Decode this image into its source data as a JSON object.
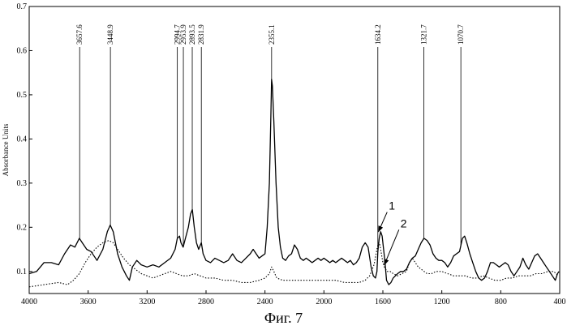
{
  "caption": "Фиг. 7",
  "chart_data": {
    "type": "line",
    "ylabel": "Absorbance Units",
    "xlabel": "",
    "xlim": [
      4000,
      400
    ],
    "ylim": [
      0.05,
      0.7
    ],
    "x_ticks": [
      "4000",
      "3600",
      "3200",
      "2800",
      "2400",
      "2000",
      "1600",
      "1200",
      "800",
      "400"
    ],
    "x_tick_values": [
      4000,
      3600,
      3200,
      2800,
      2400,
      2000,
      1600,
      1200,
      800,
      400
    ],
    "y_ticks": [
      "0.1",
      "0.2",
      "0.3",
      "0.4",
      "0.5",
      "0.6",
      "0.7"
    ],
    "y_tick_values": [
      0.1,
      0.2,
      0.3,
      0.4,
      0.5,
      0.6,
      0.7
    ],
    "peak_labels": [
      {
        "x": 3657.6,
        "text": "3657.6"
      },
      {
        "x": 3448.9,
        "text": "3448.9"
      },
      {
        "x": 2994.7,
        "text": "2994.7"
      },
      {
        "x": 2953.9,
        "text": "2953.9"
      },
      {
        "x": 2893.5,
        "text": "2893.5"
      },
      {
        "x": 2831.9,
        "text": "2831.9"
      },
      {
        "x": 2355.1,
        "text": "2355.1"
      },
      {
        "x": 1634.2,
        "text": "1634.2"
      },
      {
        "x": 1321.7,
        "text": "1321.7"
      },
      {
        "x": 1070.7,
        "text": "1070.7"
      }
    ],
    "series": [
      {
        "name": "1",
        "style": "solid",
        "x": [
          4000,
          3950,
          3900,
          3850,
          3800,
          3760,
          3720,
          3690,
          3660,
          3640,
          3610,
          3580,
          3540,
          3500,
          3470,
          3450,
          3430,
          3400,
          3370,
          3340,
          3320,
          3300,
          3270,
          3240,
          3200,
          3160,
          3120,
          3080,
          3040,
          3010,
          2995,
          2980,
          2970,
          2955,
          2940,
          2920,
          2905,
          2893,
          2880,
          2865,
          2850,
          2832,
          2820,
          2800,
          2770,
          2740,
          2710,
          2680,
          2650,
          2620,
          2590,
          2560,
          2530,
          2500,
          2480,
          2460,
          2440,
          2420,
          2400,
          2385,
          2370,
          2360,
          2355,
          2350,
          2340,
          2325,
          2310,
          2295,
          2280,
          2260,
          2240,
          2220,
          2200,
          2180,
          2160,
          2140,
          2120,
          2100,
          2080,
          2060,
          2040,
          2020,
          2000,
          1980,
          1960,
          1940,
          1920,
          1900,
          1880,
          1860,
          1840,
          1820,
          1800,
          1780,
          1760,
          1740,
          1720,
          1700,
          1680,
          1665,
          1650,
          1640,
          1634,
          1625,
          1615,
          1605,
          1595,
          1585,
          1575,
          1560,
          1545,
          1530,
          1515,
          1500,
          1480,
          1460,
          1440,
          1420,
          1400,
          1380,
          1360,
          1340,
          1321,
          1300,
          1280,
          1260,
          1240,
          1220,
          1200,
          1180,
          1160,
          1140,
          1120,
          1100,
          1080,
          1070,
          1060,
          1045,
          1030,
          1010,
          990,
          970,
          950,
          930,
          910,
          890,
          870,
          850,
          830,
          810,
          790,
          770,
          750,
          730,
          710,
          690,
          670,
          650,
          630,
          610,
          590,
          570,
          550,
          530,
          510,
          490,
          470,
          450,
          430,
          415,
          405
        ],
        "y": [
          0.095,
          0.1,
          0.12,
          0.12,
          0.115,
          0.14,
          0.16,
          0.155,
          0.175,
          0.165,
          0.15,
          0.145,
          0.125,
          0.15,
          0.19,
          0.205,
          0.19,
          0.14,
          0.11,
          0.09,
          0.08,
          0.11,
          0.125,
          0.115,
          0.11,
          0.115,
          0.11,
          0.12,
          0.13,
          0.15,
          0.175,
          0.18,
          0.165,
          0.155,
          0.175,
          0.2,
          0.23,
          0.24,
          0.2,
          0.165,
          0.15,
          0.165,
          0.14,
          0.125,
          0.12,
          0.13,
          0.125,
          0.12,
          0.125,
          0.14,
          0.125,
          0.12,
          0.13,
          0.14,
          0.15,
          0.14,
          0.13,
          0.135,
          0.14,
          0.2,
          0.3,
          0.45,
          0.535,
          0.52,
          0.44,
          0.3,
          0.2,
          0.155,
          0.13,
          0.125,
          0.135,
          0.14,
          0.16,
          0.15,
          0.13,
          0.125,
          0.13,
          0.125,
          0.12,
          0.125,
          0.13,
          0.125,
          0.13,
          0.125,
          0.12,
          0.125,
          0.12,
          0.125,
          0.13,
          0.125,
          0.12,
          0.125,
          0.115,
          0.12,
          0.13,
          0.155,
          0.165,
          0.155,
          0.11,
          0.09,
          0.085,
          0.1,
          0.145,
          0.175,
          0.19,
          0.18,
          0.15,
          0.12,
          0.08,
          0.07,
          0.075,
          0.085,
          0.09,
          0.095,
          0.1,
          0.1,
          0.105,
          0.12,
          0.13,
          0.135,
          0.15,
          0.165,
          0.175,
          0.17,
          0.16,
          0.14,
          0.13,
          0.125,
          0.125,
          0.12,
          0.11,
          0.12,
          0.135,
          0.14,
          0.145,
          0.16,
          0.175,
          0.18,
          0.165,
          0.14,
          0.12,
          0.1,
          0.085,
          0.08,
          0.085,
          0.1,
          0.12,
          0.12,
          0.115,
          0.11,
          0.115,
          0.12,
          0.115,
          0.1,
          0.09,
          0.1,
          0.11,
          0.13,
          0.115,
          0.105,
          0.12,
          0.135,
          0.14,
          0.13,
          0.12,
          0.11,
          0.1,
          0.09,
          0.08,
          0.095,
          0.1
        ]
      },
      {
        "name": "2",
        "style": "dotted",
        "x": [
          4000,
          3900,
          3800,
          3740,
          3700,
          3660,
          3620,
          3580,
          3540,
          3500,
          3460,
          3430,
          3400,
          3360,
          3320,
          3280,
          3240,
          3200,
          3160,
          3120,
          3080,
          3040,
          3000,
          2960,
          2920,
          2880,
          2840,
          2800,
          2740,
          2680,
          2620,
          2560,
          2500,
          2440,
          2400,
          2370,
          2355,
          2340,
          2320,
          2280,
          2220,
          2160,
          2100,
          2040,
          1980,
          1920,
          1860,
          1800,
          1760,
          1720,
          1690,
          1660,
          1640,
          1630,
          1620,
          1610,
          1600,
          1590,
          1570,
          1550,
          1530,
          1500,
          1470,
          1440,
          1420,
          1400,
          1380,
          1360,
          1340,
          1320,
          1300,
          1270,
          1240,
          1200,
          1160,
          1120,
          1080,
          1040,
          1000,
          960,
          920,
          880,
          840,
          800,
          760,
          720,
          680,
          640,
          600,
          560,
          520,
          480,
          440,
          410
        ],
        "y": [
          0.065,
          0.07,
          0.075,
          0.07,
          0.08,
          0.095,
          0.12,
          0.14,
          0.155,
          0.165,
          0.17,
          0.165,
          0.15,
          0.13,
          0.115,
          0.105,
          0.095,
          0.09,
          0.085,
          0.09,
          0.095,
          0.1,
          0.095,
          0.09,
          0.09,
          0.095,
          0.09,
          0.085,
          0.085,
          0.08,
          0.08,
          0.075,
          0.075,
          0.08,
          0.085,
          0.095,
          0.11,
          0.1,
          0.085,
          0.08,
          0.08,
          0.08,
          0.08,
          0.08,
          0.08,
          0.08,
          0.075,
          0.075,
          0.075,
          0.08,
          0.09,
          0.115,
          0.15,
          0.165,
          0.16,
          0.14,
          0.12,
          0.11,
          0.1,
          0.1,
          0.095,
          0.09,
          0.095,
          0.1,
          0.12,
          0.13,
          0.12,
          0.11,
          0.105,
          0.1,
          0.095,
          0.095,
          0.1,
          0.1,
          0.095,
          0.09,
          0.09,
          0.09,
          0.085,
          0.085,
          0.09,
          0.085,
          0.08,
          0.08,
          0.085,
          0.085,
          0.09,
          0.09,
          0.09,
          0.095,
          0.095,
          0.1,
          0.1,
          0.09
        ]
      }
    ],
    "curve_labels": [
      {
        "text": "1",
        "x": 1560,
        "y": 0.24,
        "arrow_to": [
          1630,
          0.19
        ]
      },
      {
        "text": "2",
        "x": 1480,
        "y": 0.2,
        "arrow_to": [
          1590,
          0.115
        ]
      }
    ]
  }
}
